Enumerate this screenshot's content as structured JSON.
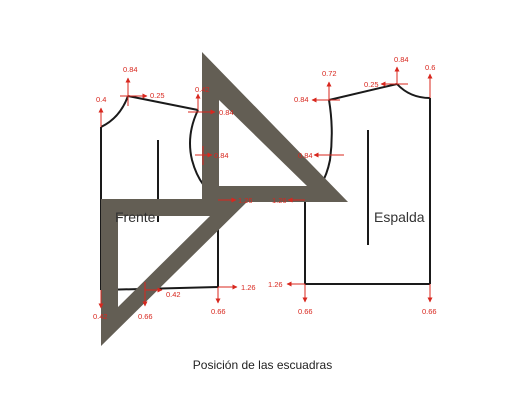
{
  "caption": "Posición de las escuadras",
  "pieces": {
    "front": "Frente",
    "back": "Espalda"
  },
  "colors": {
    "pattern": "#1a1a1a",
    "square": "#635e54",
    "measure": "#d8271e",
    "background": "#ffffff"
  },
  "measurements": {
    "m01": "0.4",
    "m02": "0.84",
    "m03": "0.25",
    "m04": "0.42",
    "m05": "0.84",
    "m06": "0.84",
    "m07": "1.26",
    "m08": "0.42",
    "m09": "0.66",
    "m10": "0.42",
    "m11": "0.66",
    "m12": "1.26",
    "m13": "0.72",
    "m14": "0.84",
    "m15": "0.6",
    "m16": "0.84",
    "m17": "0.25",
    "m18": "0.84",
    "m19": "1.26",
    "m20": "1.26",
    "m21": "0.66",
    "m22": "0.66"
  }
}
